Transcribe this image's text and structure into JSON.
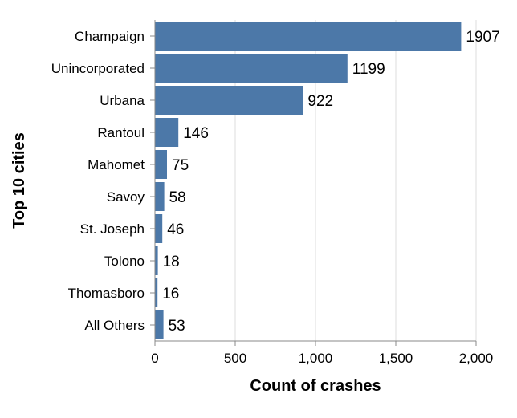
{
  "chart_data": {
    "type": "bar",
    "orientation": "horizontal",
    "categories": [
      "Champaign",
      "Unincorporated",
      "Urbana",
      "Rantoul",
      "Mahomet",
      "Savoy",
      "St. Joseph",
      "Tolono",
      "Thomasboro",
      "All Others"
    ],
    "values": [
      1907,
      1199,
      922,
      146,
      75,
      58,
      46,
      18,
      16,
      53
    ],
    "xlabel": "Count of crashes",
    "ylabel": "Top 10 cities",
    "xlim": [
      0,
      2000
    ],
    "xticks": [
      0,
      500,
      1000,
      1500,
      2000
    ],
    "xtick_labels": [
      "0",
      "500",
      "1,000",
      "1,500",
      "2,000"
    ],
    "grid": true,
    "bar_color": "#4c78a8"
  }
}
